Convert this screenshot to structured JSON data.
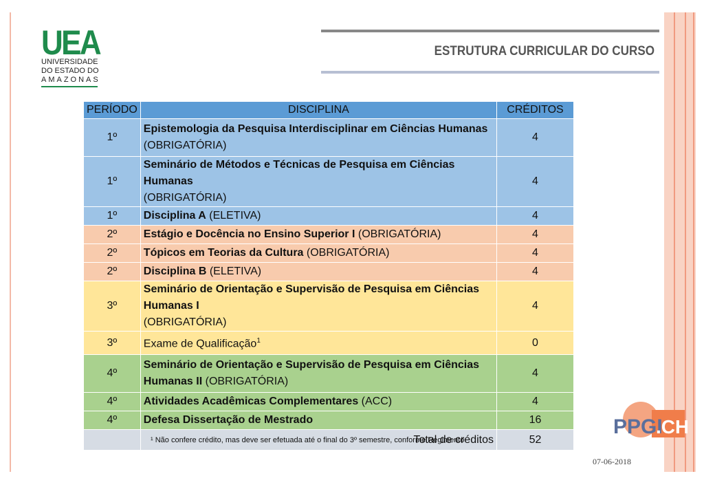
{
  "logo": {
    "mark": "UEA",
    "line1": "UNIVERSIDADE",
    "line2": "DO ESTADO DO",
    "line3": "AMAZONAS"
  },
  "page_title": "ESTRUTURA CURRICULAR DO CURSO",
  "table": {
    "headers": {
      "period": "PERÍODO",
      "discipline": "DISCIPLINA",
      "credits": "CRÉDITOS"
    },
    "rows": [
      {
        "period": "1º",
        "name": "Epistemologia da Pesquisa Interdisciplinar em Ciências Humanas",
        "type": "(OBRIGATÓRIA)",
        "credits": "4"
      },
      {
        "period": "1º",
        "name": "Seminário de Métodos e Técnicas de Pesquisa em Ciências Humanas",
        "type": "(OBRIGATÓRIA)",
        "credits": "4"
      },
      {
        "period": "1º",
        "name": "Disciplina A",
        "type": "(ELETIVA)",
        "credits": "4"
      },
      {
        "period": "2º",
        "name": "Estágio e Docência no Ensino Superior I",
        "type": "(OBRIGATÓRIA)",
        "credits": "4"
      },
      {
        "period": "2º",
        "name": "Tópicos em Teorias da Cultura",
        "type": "(OBRIGATÓRIA)",
        "credits": "4"
      },
      {
        "period": "2º",
        "name": "Disciplina B",
        "type": "(ELETIVA)",
        "credits": "4"
      },
      {
        "period": "3º",
        "name": "Seminário de Orientação e Supervisão de Pesquisa em Ciências Humanas I",
        "type": "(OBRIGATÓRIA)",
        "credits": "4"
      },
      {
        "period": "3º",
        "name": "Exame de Qualificação",
        "sup": "1",
        "type": "",
        "credits": "0"
      },
      {
        "period": "4º",
        "name": "Seminário de Orientação e Supervisão de Pesquisa em Ciências Humanas II",
        "type": "(OBRIGATÓRIA)",
        "credits": "4"
      },
      {
        "period": "4º",
        "name": "Atividades Acadêmicas Complementares",
        "type": "(ACC)",
        "credits": "4"
      },
      {
        "period": "4º",
        "name": "Defesa Dissertação de Mestrado",
        "type": "",
        "credits": "16"
      }
    ],
    "total_label": "Total de créditos",
    "total_value": "52"
  },
  "footnote": "¹ Não confere crédito, mas deve ser efetuada até o final do 3º semestre, conforme Regimento",
  "brand": {
    "left": "PPGI",
    "right": ".CH"
  },
  "date": "07-06-2018",
  "colors": {
    "header": "#5b9bd5",
    "period1": "#9dc3e6",
    "period2": "#f8cbad",
    "period3": "#ffe699",
    "period4": "#a9d18e",
    "total": "#d6dce4"
  }
}
